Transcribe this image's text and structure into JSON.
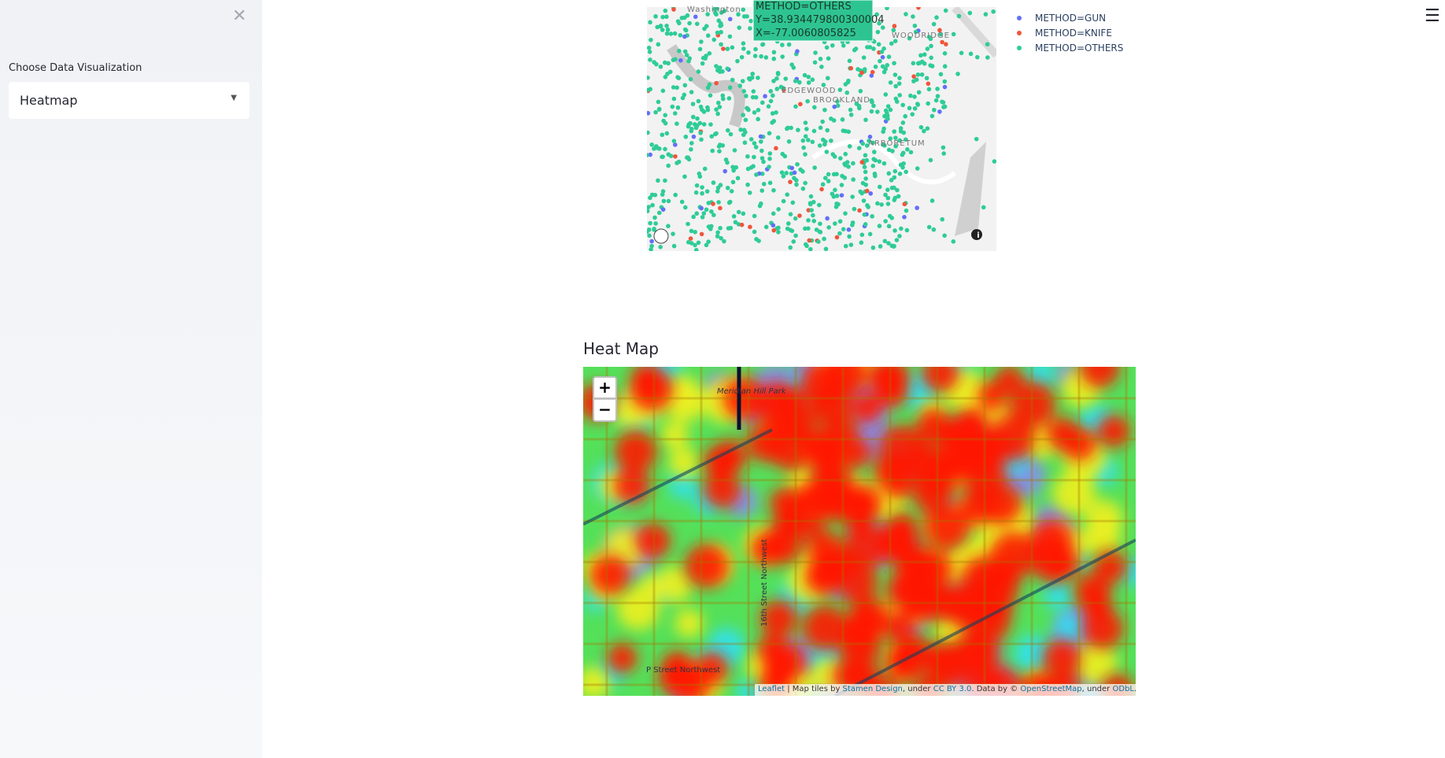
{
  "sidebar": {
    "label": "Choose Data Visualization",
    "select_value": "Heatmap"
  },
  "scatter_map": {
    "legend": [
      "METHOD=GUN",
      "METHOD=KNIFE",
      "METHOD=OTHERS"
    ],
    "tooltip": [
      "METHOD=OTHERS",
      "Y=38.934479800300004",
      "X=-77.0060805825"
    ],
    "place_labels": [
      "Washington",
      "EDGEWOOD",
      "WOODRIDGE",
      "BROOKLAND",
      "ARBORETUM"
    ]
  },
  "heatmap": {
    "title": "Heat Map",
    "place_labels": [
      "Meridian Hill Park",
      "16th Street Northwest",
      "P Street Northwest"
    ],
    "zoom_in": "+",
    "zoom_out": "−",
    "attribution": [
      {
        "text": "Leaflet",
        "link": true
      },
      {
        "text": " | Map tiles by ",
        "link": false
      },
      {
        "text": "Stamen Design",
        "link": true
      },
      {
        "text": ", under ",
        "link": false
      },
      {
        "text": "CC BY 3.0",
        "link": true
      },
      {
        "text": ". Data by © ",
        "link": false
      },
      {
        "text": "OpenStreetMap",
        "link": true
      },
      {
        "text": ", under ",
        "link": false
      },
      {
        "text": "ODbL",
        "link": true
      },
      {
        "text": ".",
        "link": false
      }
    ]
  }
}
